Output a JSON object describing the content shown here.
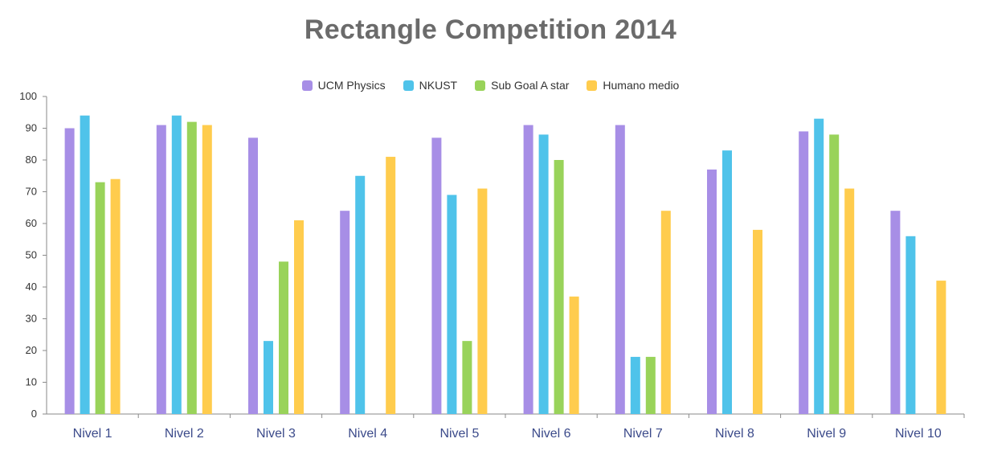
{
  "chart_data": {
    "type": "bar",
    "title": "Rectangle Competition 2014",
    "categories": [
      "Nivel 1",
      "Nivel 2",
      "Nivel 3",
      "Nivel 4",
      "Nivel 5",
      "Nivel 6",
      "Nivel 7",
      "Nivel 8",
      "Nivel 9",
      "Nivel 10"
    ],
    "series": [
      {
        "name": "UCM Physics",
        "color": "#a78ee6",
        "values": [
          90,
          91,
          87,
          64,
          87,
          91,
          91,
          77,
          89,
          64
        ]
      },
      {
        "name": "NKUST",
        "color": "#4fc3ea",
        "values": [
          94,
          94,
          23,
          75,
          69,
          88,
          18,
          83,
          93,
          56
        ]
      },
      {
        "name": "Sub Goal A star",
        "color": "#99d35a",
        "values": [
          73,
          92,
          48,
          null,
          23,
          80,
          18,
          null,
          88,
          null
        ]
      },
      {
        "name": "Humano medio",
        "color": "#ffcc4d",
        "values": [
          74,
          91,
          61,
          81,
          71,
          37,
          64,
          58,
          71,
          42
        ]
      }
    ],
    "ylim": [
      0,
      100
    ],
    "yticks": [
      0,
      10,
      20,
      30,
      40,
      50,
      60,
      70,
      80,
      90,
      100
    ],
    "xlabel": "",
    "ylabel": "",
    "grid": false,
    "legend": "top-center"
  }
}
